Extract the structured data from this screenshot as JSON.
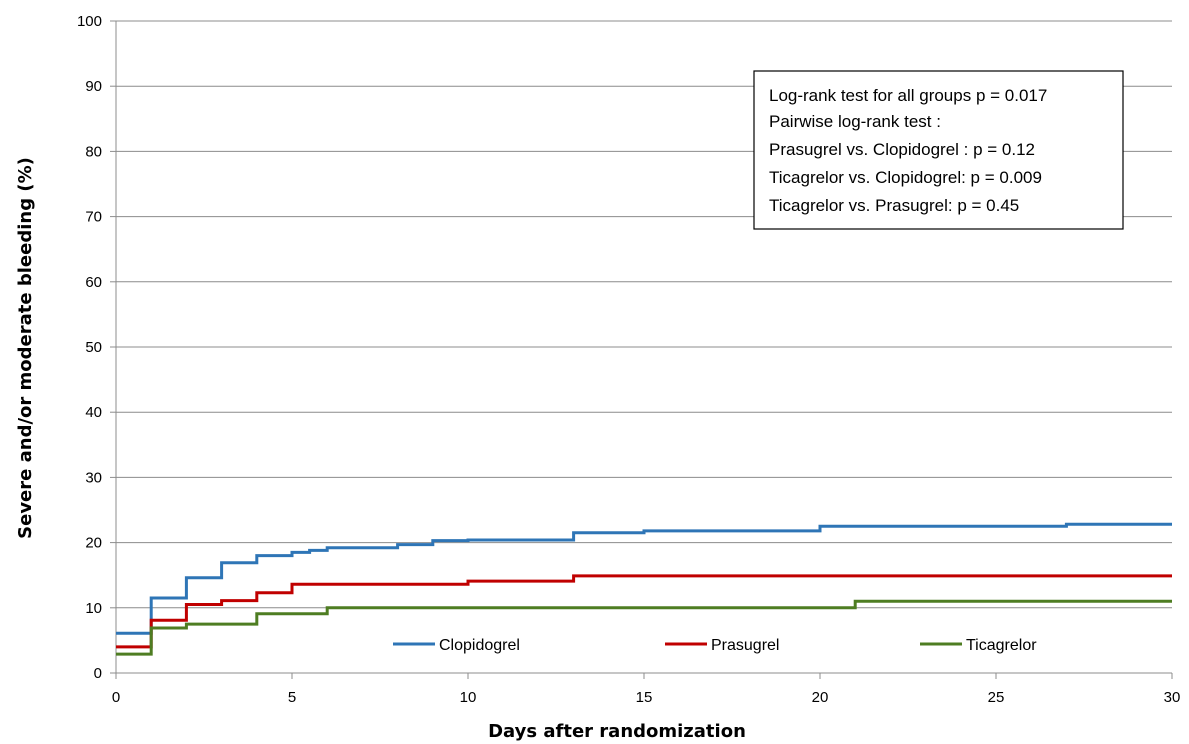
{
  "chart_data": {
    "type": "line",
    "step": true,
    "xlabel": "Days after randomization",
    "ylabel": "Severe and/or moderate bleeding (%)",
    "xlim": [
      0,
      30
    ],
    "ylim": [
      0,
      100
    ],
    "xticks": [
      0,
      5,
      10,
      15,
      20,
      25,
      30
    ],
    "yticks": [
      0,
      10,
      20,
      30,
      40,
      50,
      60,
      70,
      80,
      90,
      100
    ],
    "grid": "horizontal",
    "legend_placement": "bottom-inside",
    "series": [
      {
        "name": "Clopidogrel",
        "color": "#2E75B6",
        "points": [
          [
            0,
            6.1
          ],
          [
            1,
            11.5
          ],
          [
            2,
            14.6
          ],
          [
            3,
            16.9
          ],
          [
            4,
            18.0
          ],
          [
            5,
            18.5
          ],
          [
            5.5,
            18.8
          ],
          [
            6,
            19.2
          ],
          [
            8,
            19.7
          ],
          [
            9,
            20.3
          ],
          [
            10,
            20.4
          ],
          [
            13,
            21.5
          ],
          [
            15,
            21.8
          ],
          [
            20,
            22.5
          ],
          [
            27,
            22.8
          ],
          [
            30,
            22.8
          ]
        ]
      },
      {
        "name": "Prasugrel",
        "color": "#C00000",
        "points": [
          [
            0,
            4.0
          ],
          [
            1,
            8.1
          ],
          [
            2,
            10.5
          ],
          [
            3,
            11.1
          ],
          [
            4,
            12.3
          ],
          [
            5,
            13.6
          ],
          [
            10,
            14.1
          ],
          [
            13,
            14.9
          ],
          [
            30,
            14.9
          ]
        ]
      },
      {
        "name": "Ticagrelor",
        "color": "#4E7D22",
        "points": [
          [
            0,
            2.9
          ],
          [
            1,
            6.9
          ],
          [
            2,
            7.5
          ],
          [
            4,
            9.1
          ],
          [
            6,
            10.0
          ],
          [
            21,
            11.0
          ],
          [
            30,
            11.0
          ]
        ]
      }
    ],
    "annotation": [
      "Log-rank test for all groups p = 0.017",
      "Pairwise log-rank test :",
      "Prasugrel vs. Clopidogrel : p = 0.12",
      "Ticagrelor vs. Clopidogrel: p = 0.009",
      "Ticagrelor vs. Prasugrel: p = 0.45"
    ]
  }
}
